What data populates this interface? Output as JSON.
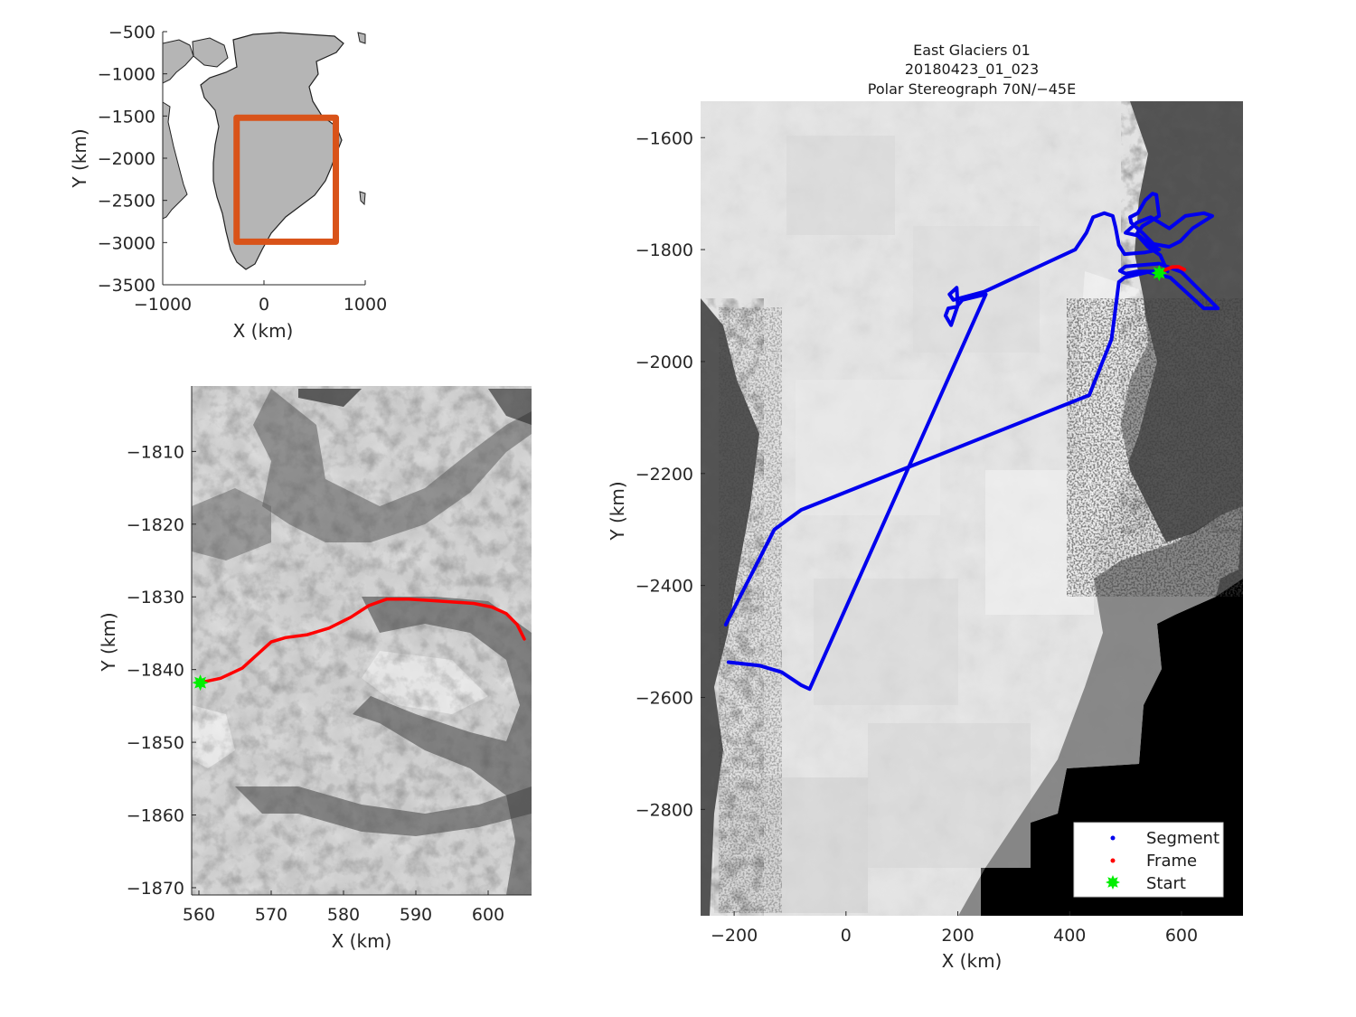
{
  "chart_data": [
    {
      "id": "overview",
      "type": "map",
      "xlabel": "X (km)",
      "ylabel": "Y (km)",
      "xlim": [
        -1000,
        1000
      ],
      "ylim": [
        -3500,
        -500
      ],
      "xticks": [
        -1000,
        0,
        1000
      ],
      "yticks": [
        -500,
        -1000,
        -1500,
        -2000,
        -2500,
        -3000,
        -3500
      ],
      "x_tick_labels": [
        "−1000",
        "0",
        "1000"
      ],
      "y_tick_labels": [
        "−500",
        "−1000",
        "−1500",
        "−2000",
        "−2500",
        "−3000",
        "−3500"
      ],
      "region_box": {
        "x": [
          -270,
          710
        ],
        "y": [
          -1520,
          -2990
        ],
        "color": "#d95319"
      },
      "land_color": "#b5b5b5"
    },
    {
      "id": "zoom",
      "type": "line",
      "xlabel": "X (km)",
      "ylabel": "Y (km)",
      "xlim": [
        559,
        606
      ],
      "ylim": [
        -1871,
        -1801
      ],
      "xticks": [
        560,
        570,
        580,
        590,
        600
      ],
      "yticks": [
        -1810,
        -1820,
        -1830,
        -1840,
        -1850,
        -1860,
        -1870
      ],
      "x_tick_labels": [
        "560",
        "570",
        "580",
        "590",
        "600"
      ],
      "y_tick_labels": [
        "−1810",
        "−1820",
        "−1830",
        "−1840",
        "−1850",
        "−1860",
        "−1870"
      ],
      "series": [
        {
          "color": "#ff0000",
          "points": [
            [
              560.2,
              -1841.8
            ],
            [
              563,
              -1841.2
            ],
            [
              566,
              -1839.8
            ],
            [
              568,
              -1838
            ],
            [
              570,
              -1836.2
            ],
            [
              572,
              -1835.6
            ],
            [
              575,
              -1835.2
            ],
            [
              578,
              -1834.3
            ],
            [
              581,
              -1832.8
            ],
            [
              583.5,
              -1831.2
            ],
            [
              586,
              -1830.3
            ],
            [
              589,
              -1830.3
            ],
            [
              592,
              -1830.5
            ],
            [
              595,
              -1830.7
            ],
            [
              598,
              -1830.9
            ],
            [
              600.5,
              -1831.4
            ],
            [
              602.5,
              -1832.3
            ],
            [
              604,
              -1833.8
            ],
            [
              605,
              -1835.8
            ]
          ]
        }
      ],
      "start_marker": {
        "x": 560.2,
        "y": -1841.8,
        "color": "#00ee00"
      }
    },
    {
      "id": "main",
      "type": "line",
      "title": [
        "East Glaciers 01",
        "20180423_01_023",
        "Polar Stereograph 70N/−45E"
      ],
      "xlabel": "X (km)",
      "ylabel": "Y (km)",
      "xlim": [
        -260,
        710
      ],
      "ylim": [
        -2990,
        -1535
      ],
      "xticks": [
        -200,
        0,
        200,
        400,
        600
      ],
      "yticks": [
        -1600,
        -1800,
        -2000,
        -2200,
        -2400,
        -2600,
        -2800
      ],
      "x_tick_labels": [
        "−200",
        "0",
        "200",
        "400",
        "600"
      ],
      "y_tick_labels": [
        "−1600",
        "−1800",
        "−2000",
        "−2200",
        "−2400",
        "−2600",
        "−2800"
      ],
      "series": [
        {
          "name": "Segment",
          "color": "#0000ee",
          "points": [
            [
              -215,
              -2470
            ],
            [
              -128,
              -2300
            ],
            [
              -80,
              -2265
            ],
            [
              435,
              -2060
            ],
            [
              475,
              -1960
            ],
            [
              488,
              -1858
            ],
            [
              498,
              -1850
            ],
            [
              540,
              -1840
            ],
            [
              580,
              -1850
            ],
            [
              640,
              -1905
            ],
            [
              665,
              -1905
            ],
            [
              600,
              -1840
            ],
            [
              560,
              -1825
            ],
            [
              500,
              -1830
            ],
            [
              490,
              -1838
            ],
            [
              500,
              -1843
            ],
            [
              520,
              -1839
            ],
            [
              575,
              -1839
            ],
            [
              562,
              -1810
            ],
            [
              540,
              -1795
            ],
            [
              522,
              -1775
            ],
            [
              500,
              -1770
            ],
            [
              520,
              -1752
            ],
            [
              545,
              -1742
            ],
            [
              578,
              -1762
            ],
            [
              607,
              -1740
            ],
            [
              640,
              -1735
            ],
            [
              655,
              -1740
            ],
            [
              620,
              -1762
            ],
            [
              598,
              -1785
            ],
            [
              578,
              -1795
            ],
            [
              550,
              -1790
            ],
            [
              530,
              -1770
            ],
            [
              510,
              -1752
            ],
            [
              508,
              -1742
            ],
            [
              522,
              -1735
            ],
            [
              535,
              -1712
            ],
            [
              548,
              -1700
            ],
            [
              555,
              -1702
            ],
            [
              560,
              -1740
            ],
            [
              530,
              -1758
            ],
            [
              520,
              -1772
            ],
            [
              540,
              -1788
            ],
            [
              560,
              -1800
            ],
            [
              535,
              -1805
            ],
            [
              498,
              -1808
            ],
            [
              488,
              -1792
            ],
            [
              482,
              -1760
            ],
            [
              477,
              -1740
            ],
            [
              462,
              -1735
            ],
            [
              442,
              -1742
            ],
            [
              430,
              -1770
            ],
            [
              410,
              -1800
            ],
            [
              248,
              -1875
            ],
            [
              192,
              -1890
            ],
            [
              185,
              -1880
            ],
            [
              198,
              -1868
            ],
            [
              200,
              -1900
            ],
            [
              188,
              -1935
            ],
            [
              178,
              -1918
            ],
            [
              183,
              -1905
            ],
            [
              198,
              -1902
            ],
            [
              208,
              -1890
            ],
            [
              250,
              -1880
            ],
            [
              -65,
              -2585
            ],
            [
              -80,
              -2578
            ],
            [
              -115,
              -2555
            ],
            [
              -155,
              -2543
            ],
            [
              -210,
              -2537
            ]
          ]
        },
        {
          "name": "Frame",
          "color": "#ff0000",
          "points": [
            [
              560.2,
              -1841.8
            ],
            [
              572,
              -1835.6
            ],
            [
              583.5,
              -1831.2
            ],
            [
              595,
              -1830.7
            ],
            [
              605,
              -1835.8
            ]
          ]
        }
      ],
      "start_marker": {
        "x": 560.2,
        "y": -1841.8,
        "color": "#00ee00"
      },
      "legend": {
        "position": "bottom-right",
        "entries": [
          {
            "label": "Segment",
            "color": "#0000ee",
            "marker": "dot"
          },
          {
            "label": "Frame",
            "color": "#ff0000",
            "marker": "dot"
          },
          {
            "label": "Start",
            "color": "#00ee00",
            "marker": "star"
          }
        ]
      }
    }
  ]
}
